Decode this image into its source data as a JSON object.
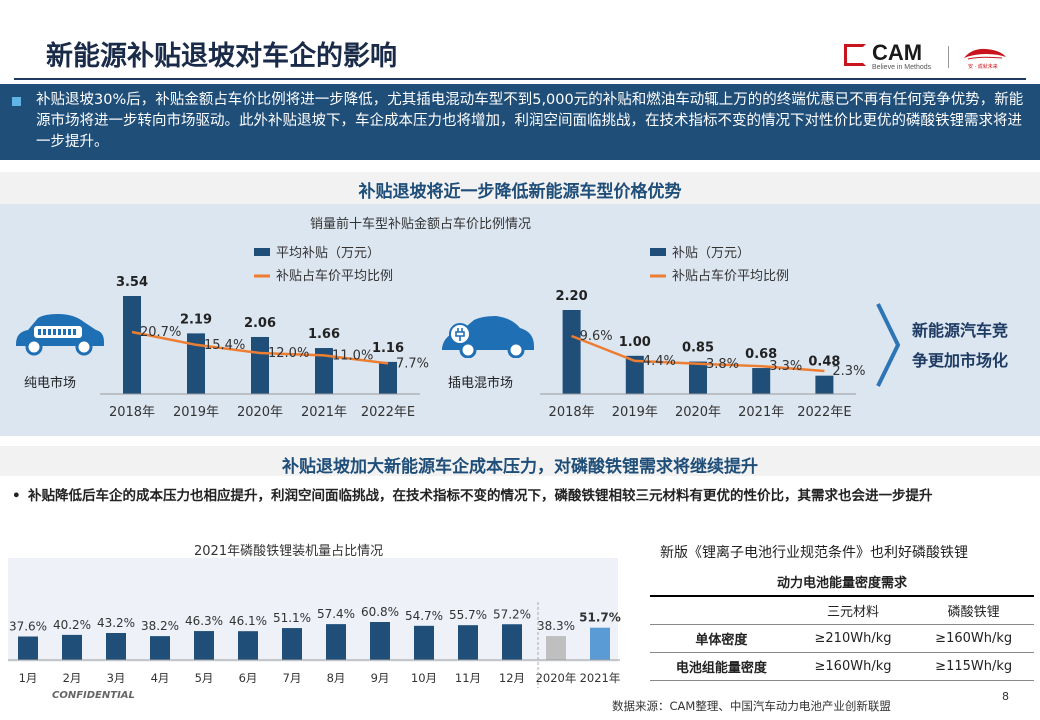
{
  "header": {
    "title": "新能源补贴退坡对车企的影响",
    "logo_text": "CAM",
    "logo_tagline": "Believe in Methods",
    "logo_right_text": "安 · 成就未来"
  },
  "banner": {
    "text": "补贴退坡30%后，补贴金额占车价比例将进一步降低，尤其插电混动车型不到5,000元的补贴和燃油车动辄上万的的终端优惠已不再有任何竞争优势，新能源市场将进一步转向市场驱动。此外补贴退坡下，车企成本压力也将增加，利润空间面临挑战，在技术指标不变的情况下对性价比更优的磷酸铁锂需求将进一步提升。"
  },
  "section1": {
    "heading": "补贴退坡将近一步降低新能源车型价格优势",
    "chart_title": "销量前十车型补贴金额占车价比例情况",
    "bev_label": "纯电市场",
    "phev_label": "插电混市场",
    "conclusion_line1": "新能源汽车竞",
    "conclusion_line2": "争更加市场化"
  },
  "section2": {
    "heading": "补贴退坡加大新能源车企成本压力，对磷酸铁锂需求将继续提升",
    "bullet_mark": "•",
    "bullet": "补贴降低后车企的成本压力也相应提升，利润空间面临挑战，在技术指标不变的情况下，磷酸铁锂相较三元材料有更优的性价比，其需求也会进一步提升",
    "lfp_chart_title": "2021年磷酸铁锂装机量占比情况",
    "reg_title": "新版《锂离子电池行业规范条件》也利好磷酸铁锂",
    "table": {
      "caption": "动力电池能量密度需求",
      "col1": "三元材料",
      "col2": "磷酸铁锂",
      "rows": [
        {
          "name": "单体密度",
          "v1": "≥210Wh/kg",
          "v2": "≥160Wh/kg"
        },
        {
          "name": "电池组能量密度",
          "v1": "≥160Wh/kg",
          "v2": "≥115Wh/kg"
        }
      ]
    }
  },
  "footer": {
    "confidential": "CONFIDENTIAL",
    "source": "数据来源：CAM整理、中国汽车动力电池产业创新联盟",
    "page": "8"
  },
  "colors": {
    "bar": "#1f4e79",
    "line": "#ed7d31",
    "bar_light": "#5b9bd5",
    "bar_grey": "#bfbfbf"
  },
  "chart_data": [
    {
      "type": "bar",
      "categories": [
        "2018年",
        "2019年",
        "2020年",
        "2021年",
        "2022年E"
      ],
      "series": [
        {
          "name": "平均补贴（万元）",
          "type": "bar",
          "values": [
            3.54,
            2.19,
            2.06,
            1.66,
            1.16
          ],
          "labels": [
            "3.54",
            "2.19",
            "2.06",
            "1.66",
            "1.16"
          ]
        },
        {
          "name": "补贴占车价平均比例",
          "type": "line",
          "values": [
            20.7,
            15.4,
            12.0,
            11.0,
            7.7
          ],
          "labels": [
            "20.7%",
            "15.4%",
            "12.0%",
            "11.0%",
            "7.7%"
          ]
        }
      ]
    },
    {
      "type": "bar",
      "categories": [
        "2018年",
        "2019年",
        "2020年",
        "2021年",
        "2022年E"
      ],
      "series": [
        {
          "name": "补贴（万元）",
          "type": "bar",
          "values": [
            2.2,
            1.0,
            0.85,
            0.68,
            0.48
          ],
          "labels": [
            "2.20",
            "1.00",
            "0.85",
            "0.68",
            "0.48"
          ]
        },
        {
          "name": "补贴占车价平均比例",
          "type": "line",
          "values": [
            9.6,
            4.4,
            3.8,
            3.3,
            2.3
          ],
          "labels": [
            "9.6%",
            "4.4%",
            "3.8%",
            "3.3%",
            "2.3%"
          ]
        }
      ]
    },
    {
      "type": "bar",
      "categories": [
        "1月",
        "2月",
        "3月",
        "4月",
        "5月",
        "6月",
        "7月",
        "8月",
        "9月",
        "10月",
        "11月",
        "12月",
        "2020年",
        "2021年"
      ],
      "values": [
        37.6,
        40.2,
        43.2,
        38.2,
        46.3,
        46.1,
        51.1,
        57.4,
        60.8,
        54.7,
        55.7,
        57.2,
        38.3,
        51.7
      ],
      "labels": [
        "37.6%",
        "40.2%",
        "43.2%",
        "38.2%",
        "46.3%",
        "46.1%",
        "51.1%",
        "57.4%",
        "60.8%",
        "54.7%",
        "55.7%",
        "57.2%",
        "38.3%",
        "51.7%"
      ]
    }
  ]
}
